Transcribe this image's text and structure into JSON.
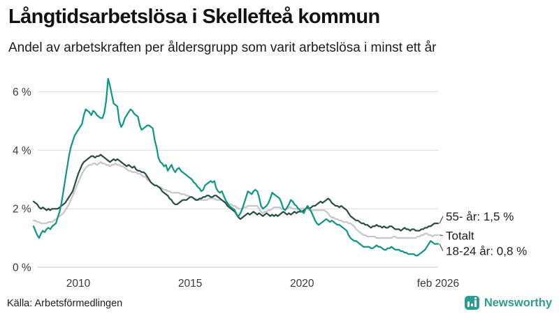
{
  "header": {
    "title": "Långtidsarbetslösa i Skellefteå kommun",
    "subtitle": "Andel av arbetskraften per åldersgrupp som varit arbetslösa i minst ett år"
  },
  "footer": {
    "source": "Källa: Arbetsförmedlingen",
    "brand_name": "Newsworthy",
    "brand_icon": "bar-chart-badge-icon"
  },
  "colors": {
    "teal_line": "#0e9686",
    "dark_line": "#2a5045",
    "gray_line": "#c7c5d1",
    "grid": "#dcdcdc",
    "baseline": "#c9c9c9",
    "axis_text": "#3a3a3a",
    "leader": "#333333",
    "brand_teal": "#2a9d8f"
  },
  "chart_data": {
    "type": "line",
    "title": "Långtidsarbetslösa i Skellefteå kommun",
    "subtitle": "Andel av arbetskraften per åldersgrupp som varit arbetslösa i minst ett år",
    "unit": "%",
    "x_start_year": 2008.0,
    "x_step_years": 0.08333,
    "x_end_label": "feb 2026",
    "xlim": [
      2008.0,
      2026.083
    ],
    "ylim": [
      0,
      6.6
    ],
    "grid": "horizontal",
    "legend_position": "end-of-line",
    "y_ticks": [
      {
        "value": 0,
        "label": "0 %"
      },
      {
        "value": 2,
        "label": "2 %"
      },
      {
        "value": 4,
        "label": "4 %"
      },
      {
        "value": 6,
        "label": "6 %"
      }
    ],
    "x_ticks": [
      {
        "value": 2010,
        "label": "2010"
      },
      {
        "value": 2015,
        "label": "2015"
      },
      {
        "value": 2020,
        "label": "2020"
      },
      {
        "value": 2026.083,
        "label": "feb 2026"
      }
    ],
    "series": [
      {
        "name": "Totalt",
        "color": "#c7c5d1",
        "values": [
          1.6,
          1.6,
          1.55,
          1.55,
          1.5,
          1.5,
          1.5,
          1.5,
          1.55,
          1.55,
          1.55,
          1.6,
          1.65,
          1.7,
          1.75,
          1.8,
          1.85,
          1.95,
          2.05,
          2.15,
          2.3,
          2.45,
          2.6,
          2.75,
          2.9,
          3.05,
          3.2,
          3.3,
          3.4,
          3.45,
          3.5,
          3.5,
          3.55,
          3.55,
          3.5,
          3.55,
          3.6,
          3.55,
          3.55,
          3.5,
          3.5,
          3.45,
          3.5,
          3.5,
          3.55,
          3.5,
          3.5,
          3.45,
          3.45,
          3.4,
          3.35,
          3.3,
          3.3,
          3.25,
          3.25,
          3.25,
          3.2,
          3.2,
          3.15,
          3.1,
          3.1,
          3.0,
          2.95,
          2.9,
          2.85,
          2.8,
          2.8,
          2.75,
          2.75,
          2.7,
          2.65,
          2.65,
          2.6,
          2.6,
          2.55,
          2.55,
          2.55,
          2.55,
          2.55,
          2.5,
          2.5,
          2.5,
          2.45,
          2.45,
          2.4,
          2.4,
          2.35,
          2.35,
          2.3,
          2.3,
          2.3,
          2.3,
          2.3,
          2.3,
          2.35,
          2.35,
          2.35,
          2.35,
          2.3,
          2.3,
          2.3,
          2.3,
          2.25,
          2.25,
          2.2,
          2.15,
          2.15,
          2.1,
          2.1,
          2.05,
          2.0,
          2.0,
          2.0,
          2.05,
          2.05,
          2.1,
          2.1,
          2.1,
          2.1,
          2.1,
          2.1,
          2.0,
          1.9,
          1.85,
          1.9,
          1.9,
          1.95,
          1.95,
          2.0,
          2.05,
          2.05,
          2.05,
          2.05,
          2.0,
          2.0,
          2.0,
          2.0,
          2.05,
          2.05,
          2.0,
          2.0,
          2.0,
          2.0,
          2.0,
          2.0,
          2.0,
          2.0,
          2.0,
          1.95,
          1.95,
          1.95,
          1.95,
          1.95,
          1.95,
          1.95,
          1.95,
          1.95,
          1.9,
          1.85,
          1.75,
          1.7,
          1.7,
          1.65,
          1.65,
          1.6,
          1.6,
          1.55,
          1.55,
          1.55,
          1.5,
          1.5,
          1.45,
          1.4,
          1.3,
          1.25,
          1.2,
          1.15,
          1.1,
          1.1,
          1.05,
          1.05,
          1.05,
          1.05,
          1.05,
          1.0,
          1.0,
          1.0,
          1.0,
          1.0,
          1.0,
          1.0,
          1.0,
          1.0,
          1.05,
          1.05,
          1.0,
          1.0,
          1.0,
          1.0,
          1.0,
          1.0,
          1.0,
          1.0,
          1.0,
          1.0,
          1.0,
          1.05,
          1.05,
          1.1,
          1.1,
          1.15,
          1.15,
          1.1,
          1.1,
          1.05,
          1.1,
          1.1,
          1.1
        ]
      },
      {
        "name": "55- år",
        "color": "#2a5045",
        "values": [
          2.25,
          2.2,
          2.15,
          2.05,
          2.0,
          2.05,
          2.0,
          1.95,
          2.0,
          1.95,
          2.0,
          2.0,
          2.0,
          2.0,
          2.05,
          2.1,
          2.15,
          2.2,
          2.3,
          2.4,
          2.5,
          2.6,
          2.8,
          3.0,
          3.2,
          3.35,
          3.5,
          3.6,
          3.65,
          3.7,
          3.75,
          3.8,
          3.8,
          3.75,
          3.8,
          3.8,
          3.85,
          3.8,
          3.75,
          3.7,
          3.65,
          3.6,
          3.65,
          3.7,
          3.65,
          3.7,
          3.65,
          3.6,
          3.55,
          3.5,
          3.45,
          3.5,
          3.45,
          3.4,
          3.45,
          3.35,
          3.3,
          3.3,
          3.25,
          3.25,
          3.2,
          3.1,
          3.0,
          2.9,
          2.85,
          2.8,
          2.8,
          2.75,
          2.7,
          2.6,
          2.55,
          2.5,
          2.45,
          2.35,
          2.3,
          2.2,
          2.15,
          2.15,
          2.2,
          2.25,
          2.3,
          2.3,
          2.3,
          2.35,
          2.4,
          2.4,
          2.35,
          2.3,
          2.3,
          2.35,
          2.35,
          2.4,
          2.4,
          2.45,
          2.45,
          2.4,
          2.4,
          2.45,
          2.45,
          2.4,
          2.35,
          2.3,
          2.25,
          2.2,
          2.1,
          2.05,
          2.0,
          1.95,
          1.9,
          1.8,
          1.7,
          1.65,
          1.7,
          1.75,
          1.8,
          1.85,
          1.8,
          1.85,
          1.9,
          1.85,
          1.8,
          1.85,
          1.8,
          1.75,
          1.8,
          1.85,
          1.8,
          1.75,
          1.8,
          1.75,
          1.8,
          1.75,
          1.8,
          1.85,
          1.9,
          1.85,
          1.8,
          1.85,
          1.8,
          1.85,
          1.9,
          1.85,
          1.9,
          1.9,
          1.9,
          1.95,
          2.0,
          2.05,
          2.0,
          2.05,
          2.1,
          2.1,
          2.15,
          2.2,
          2.25,
          2.2,
          2.25,
          2.3,
          2.35,
          2.3,
          2.2,
          2.15,
          2.1,
          2.1,
          2.05,
          2.1,
          2.05,
          2.0,
          1.95,
          1.85,
          1.75,
          1.7,
          1.65,
          1.6,
          1.6,
          1.55,
          1.5,
          1.5,
          1.45,
          1.45,
          1.4,
          1.35,
          1.4,
          1.4,
          1.45,
          1.4,
          1.4,
          1.35,
          1.4,
          1.35,
          1.35,
          1.4,
          1.4,
          1.35,
          1.3,
          1.3,
          1.3,
          1.25,
          1.3,
          1.35,
          1.3,
          1.3,
          1.25,
          1.3,
          1.3,
          1.25,
          1.25,
          1.25,
          1.3,
          1.3,
          1.35,
          1.35,
          1.4,
          1.4,
          1.45,
          1.5,
          1.5,
          1.5
        ]
      },
      {
        "name": "18-24 år",
        "color": "#0e9686",
        "values": [
          1.4,
          1.25,
          1.1,
          1.0,
          1.15,
          1.25,
          1.2,
          1.3,
          1.35,
          1.3,
          1.4,
          1.45,
          1.5,
          1.7,
          1.9,
          2.2,
          2.6,
          3.0,
          3.4,
          3.8,
          4.1,
          4.3,
          4.5,
          4.6,
          4.7,
          4.8,
          4.9,
          5.2,
          5.4,
          5.35,
          5.3,
          5.2,
          5.35,
          5.3,
          5.2,
          5.15,
          5.1,
          5.1,
          5.3,
          5.7,
          6.45,
          6.2,
          5.9,
          5.6,
          5.55,
          5.5,
          5.0,
          4.8,
          4.9,
          5.1,
          5.2,
          5.3,
          5.4,
          5.35,
          5.25,
          5.2,
          5.15,
          4.85,
          4.7,
          4.75,
          4.8,
          4.85,
          4.85,
          4.8,
          4.75,
          4.35,
          4.1,
          3.75,
          3.6,
          3.55,
          3.45,
          3.5,
          3.3,
          3.4,
          3.5,
          3.35,
          3.25,
          3.35,
          3.4,
          3.3,
          3.25,
          3.2,
          3.15,
          3.1,
          3.05,
          3.0,
          2.9,
          2.85,
          2.75,
          2.7,
          2.6,
          2.65,
          2.8,
          2.85,
          2.9,
          2.95,
          2.9,
          2.95,
          2.7,
          2.6,
          2.55,
          2.6,
          2.45,
          2.3,
          2.2,
          2.1,
          2.05,
          2.0,
          1.95,
          1.8,
          1.75,
          1.85,
          2.0,
          2.2,
          2.4,
          2.6,
          2.55,
          2.5,
          2.6,
          2.65,
          2.6,
          2.4,
          2.1,
          2.0,
          2.05,
          2.1,
          2.2,
          2.35,
          2.55,
          2.5,
          2.45,
          2.4,
          2.35,
          2.2,
          2.0,
          1.95,
          2.05,
          2.15,
          2.3,
          2.25,
          2.15,
          2.1,
          2.0,
          1.95,
          1.9,
          1.85,
          2.0,
          2.1,
          2.0,
          1.9,
          1.75,
          1.6,
          1.5,
          1.45,
          1.5,
          1.55,
          1.6,
          1.65,
          1.6,
          1.55,
          1.6,
          1.55,
          1.5,
          1.45,
          1.45,
          1.4,
          1.35,
          1.3,
          1.25,
          1.1,
          1.0,
          0.95,
          0.9,
          0.9,
          0.85,
          0.8,
          0.75,
          0.7,
          0.7,
          0.7,
          0.7,
          0.65,
          0.65,
          0.7,
          0.75,
          0.7,
          0.7,
          0.65,
          0.6,
          0.6,
          0.65,
          0.65,
          0.7,
          0.65,
          0.6,
          0.6,
          0.6,
          0.55,
          0.55,
          0.5,
          0.5,
          0.45,
          0.45,
          0.45,
          0.45,
          0.4,
          0.4,
          0.45,
          0.5,
          0.55,
          0.6,
          0.7,
          0.8,
          0.9,
          0.85,
          0.8,
          0.8,
          0.8
        ]
      }
    ],
    "annotations": [
      {
        "text": "55- år: 1,5 %",
        "series": "55- år"
      },
      {
        "text": "Totalt",
        "series": "Totalt"
      },
      {
        "text": "18-24 år: 0,8 %",
        "series": "18-24 år"
      }
    ]
  }
}
